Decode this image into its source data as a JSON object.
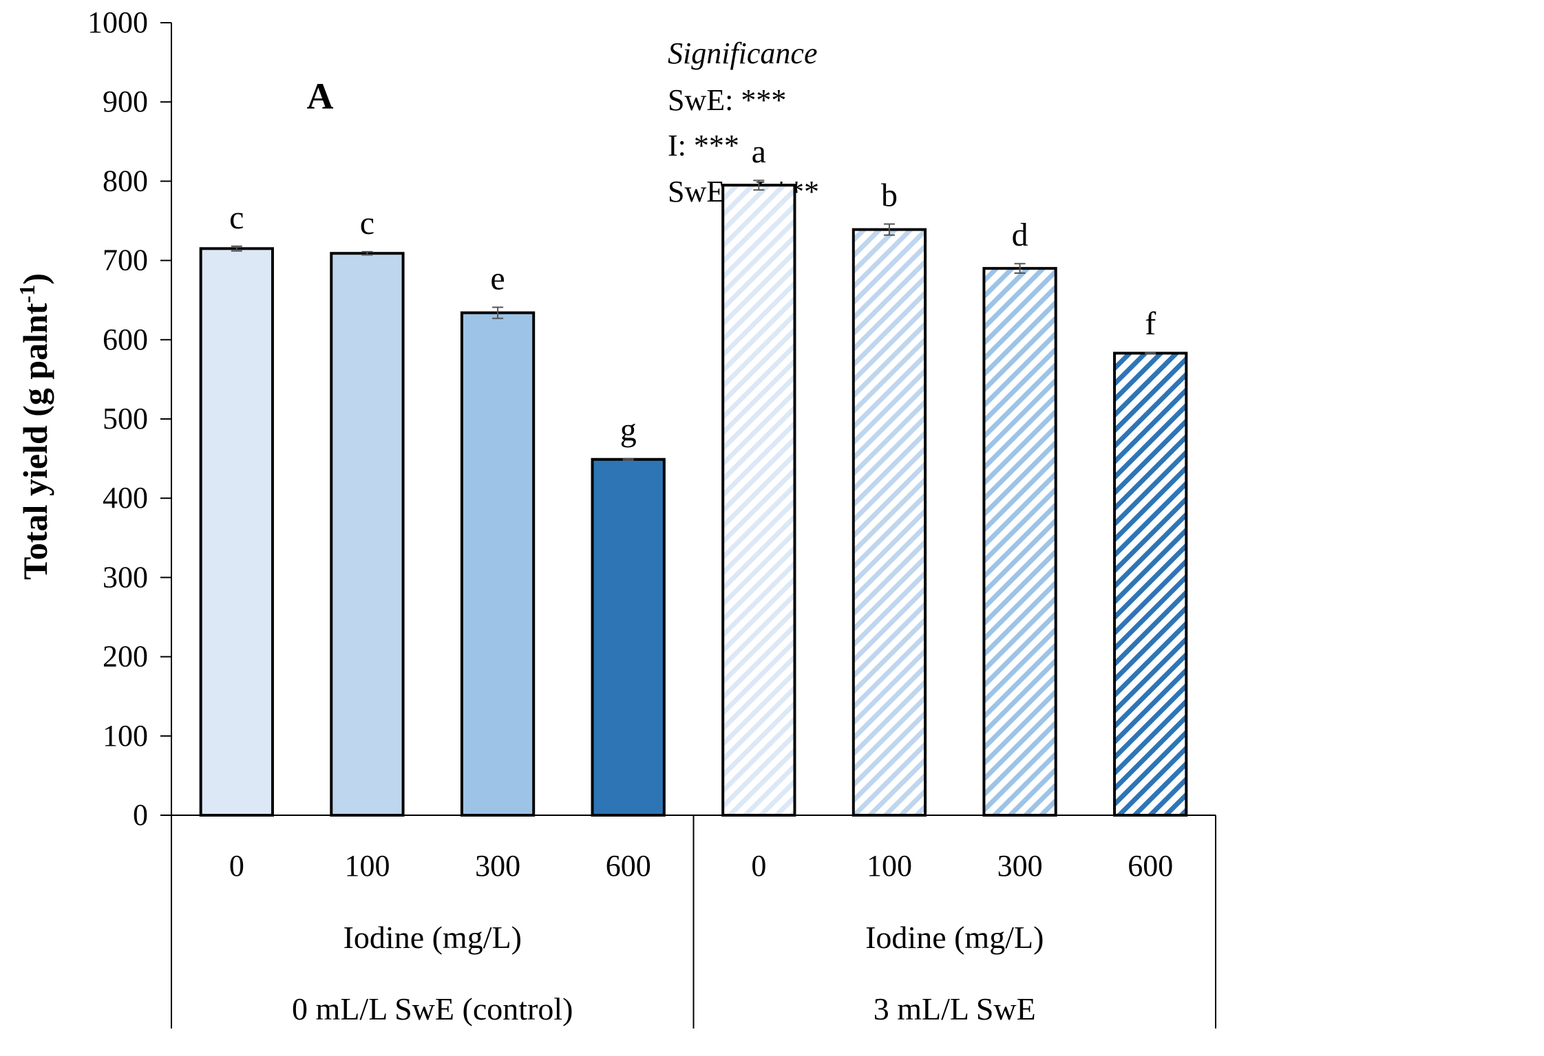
{
  "chart_data": {
    "type": "bar",
    "panel_label": "A",
    "ylabel": "Total yield (g palnt",
    "ylabel_sup": "-1",
    "ylabel_close": ")",
    "ylim": [
      0,
      1000
    ],
    "y_ticks": [
      "0",
      "100",
      "200",
      "300",
      "400",
      "500",
      "600",
      "700",
      "800",
      "900",
      "1000"
    ],
    "groups": [
      {
        "name": "0 mL/L SwE (control)",
        "xlabel": "Iodine (mg/L)",
        "pattern": "solid",
        "bars": [
          {
            "category": "0",
            "value": 715,
            "error": 3,
            "letter": "c",
            "color": "#dce8f6"
          },
          {
            "category": "100",
            "value": 709,
            "error": 2,
            "letter": "c",
            "color": "#bed6ee"
          },
          {
            "category": "300",
            "value": 634,
            "error": 7,
            "letter": "e",
            "color": "#9dc3e6"
          },
          {
            "category": "600",
            "value": 449,
            "error": 1,
            "letter": "g",
            "color": "#2e75b6"
          }
        ]
      },
      {
        "name": "3 mL/L SwE",
        "xlabel": "Iodine (mg/L)",
        "pattern": "diagonal-stripes",
        "bars": [
          {
            "category": "0",
            "value": 795,
            "error": 6,
            "letter": "a",
            "color": "#dce8f6"
          },
          {
            "category": "100",
            "value": 739,
            "error": 7,
            "letter": "b",
            "color": "#bed6ee"
          },
          {
            "category": "300",
            "value": 690,
            "error": 6,
            "letter": "d",
            "color": "#9dc3e6"
          },
          {
            "category": "600",
            "value": 583,
            "error": 1,
            "letter": "f",
            "color": "#2e75b6"
          }
        ]
      }
    ],
    "annotation": {
      "title": "Significance",
      "lines": [
        "SwE: ***",
        "I: ***",
        "SwE x I:***"
      ]
    }
  }
}
